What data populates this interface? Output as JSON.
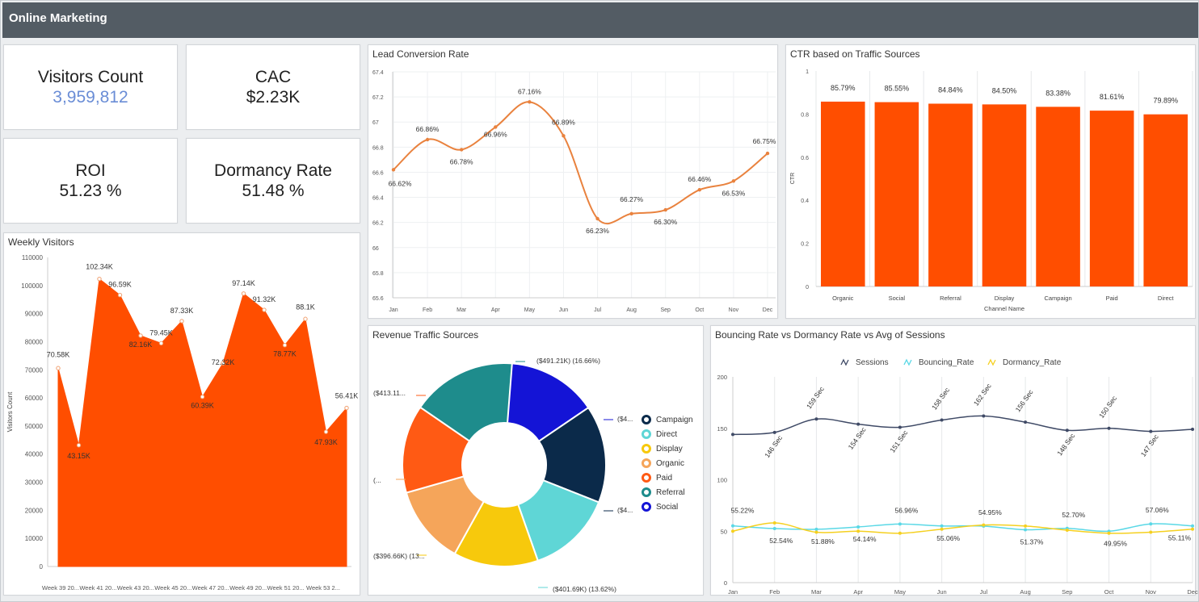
{
  "header": {
    "title": "Online Marketing"
  },
  "kpis": {
    "visitors": {
      "label": "Visitors Count",
      "value": "3,959,812"
    },
    "cac": {
      "label": "CAC",
      "value": "$2.23K"
    },
    "roi": {
      "label": "ROI",
      "value": "51.23 %"
    },
    "dormancy": {
      "label": "Dormancy Rate",
      "value": "51.48 %"
    }
  },
  "colors": {
    "orange": "#ff4e00",
    "leadLine": "#e9823e",
    "sessions": "#3f4a66",
    "bouncing": "#5ad8e6",
    "dormancy": "#f5d020",
    "kpiBlue": "#6a8dd6"
  },
  "chart_data": [
    {
      "id": "weekly",
      "type": "area",
      "title": "Weekly Visitors",
      "ylabel": "Visitors Count",
      "xlabel": "",
      "ylim": [
        0,
        110000
      ],
      "yticks": [
        0,
        10000,
        20000,
        30000,
        40000,
        50000,
        60000,
        70000,
        80000,
        90000,
        100000,
        110000
      ],
      "xtick_labels": [
        "Week 39 20...",
        "Week 41 20...",
        "Week 43 20...",
        "Week 45 20...",
        "Week 47 20...",
        "Week 49 20...",
        "Week 51 20...",
        "Week 53 2..."
      ],
      "series": [
        {
          "values": [
            70580,
            43150,
            102340,
            96590,
            82160,
            79450,
            87330,
            60390,
            72320,
            97140,
            91320,
            78770,
            88100,
            47930,
            56410
          ]
        }
      ],
      "data_labels": [
        "70.58K",
        "43.15K",
        "102.34K",
        "96.59K",
        "82.16K",
        "79.45K",
        "87.33K",
        "60.39K",
        "72.32K",
        "97.14K",
        "91.32K",
        "78.77K",
        "88.1K",
        "47.93K",
        "56.41K"
      ]
    },
    {
      "id": "lead",
      "type": "line",
      "title": "Lead Conversion Rate",
      "xlabel": "",
      "ylabel": "",
      "ylim": [
        65.6,
        67.4
      ],
      "yticks": [
        65.6,
        65.8,
        66,
        66.2,
        66.4,
        66.6,
        66.8,
        67,
        67.2,
        67.4
      ],
      "categories": [
        "Jan",
        "Feb",
        "Mar",
        "Apr",
        "May",
        "Jun",
        "Jul",
        "Aug",
        "Sep",
        "Oct",
        "Nov",
        "Dec"
      ],
      "series": [
        {
          "values": [
            66.62,
            66.86,
            66.78,
            66.96,
            67.16,
            66.89,
            66.23,
            66.27,
            66.3,
            66.46,
            66.53,
            66.75
          ]
        }
      ],
      "data_labels": [
        "66.62%",
        "66.86%",
        "66.78%",
        "66.96%",
        "67.16%",
        "66.89%",
        "66.23%",
        "66.27%",
        "66.30%",
        "66.46%",
        "66.53%",
        "66.75%"
      ]
    },
    {
      "id": "ctr",
      "type": "bar",
      "title": "CTR based on Traffic Sources",
      "xlabel": "Channel Name",
      "ylabel": "CTR",
      "ylim": [
        0,
        1
      ],
      "yticks": [
        0,
        0.2,
        0.4,
        0.6,
        0.8,
        1
      ],
      "categories": [
        "Organic",
        "Social",
        "Referral",
        "Display",
        "Campaign",
        "Paid",
        "Direct"
      ],
      "series": [
        {
          "values": [
            0.8579,
            0.8555,
            0.8484,
            0.845,
            0.8338,
            0.8161,
            0.7989
          ]
        }
      ],
      "data_labels": [
        "85.79%",
        "85.55%",
        "84.84%",
        "84.50%",
        "83.38%",
        "81.61%",
        "79.89%"
      ]
    },
    {
      "id": "revenue",
      "type": "pie",
      "title": "Revenue Traffic Sources",
      "legend": [
        "Campaign",
        "Direct",
        "Display",
        "Organic",
        "Paid",
        "Referral",
        "Social"
      ],
      "slices": [
        {
          "name": "Social",
          "value": 0.155,
          "color": "#1414d6",
          "label": "($4..."
        },
        {
          "name": "Campaign",
          "value": 0.155,
          "color": "#0b2a4a",
          "label": "($4..."
        },
        {
          "name": "Direct",
          "value": 0.1362,
          "color": "#5fd6d6",
          "label": "($401.69K) (13.62%)"
        },
        {
          "name": "Display",
          "value": 0.1345,
          "color": "#f7c90c",
          "label": "($396.66K) (13..."
        },
        {
          "name": "Organic",
          "value": 0.125,
          "color": "#f5a55a",
          "label": "(..."
        },
        {
          "name": "Paid",
          "value": 0.1401,
          "color": "#ff5a14",
          "label": "($413.11..."
        },
        {
          "name": "Referral",
          "value": 0.1666,
          "color": "#1e8c8c",
          "label": "($491.21K) (16.66%)"
        }
      ],
      "legend_colors": [
        "#0b2a4a",
        "#5fd6d6",
        "#f7c90c",
        "#f5a55a",
        "#ff5a14",
        "#1e8c8c",
        "#1414d6"
      ]
    },
    {
      "id": "bouncing",
      "type": "line",
      "title": "Bouncing Rate vs Dormancy Rate vs Avg of Sessions",
      "xlabel": "",
      "ylabel": "",
      "ylim": [
        0,
        200
      ],
      "yticks": [
        0,
        50,
        100,
        150,
        200
      ],
      "categories": [
        "Jan",
        "Feb",
        "Mar",
        "Apr",
        "May",
        "Jun",
        "Jul",
        "Aug",
        "Sep",
        "Oct",
        "Nov",
        "Dec"
      ],
      "series": [
        {
          "name": "Sessions",
          "values": [
            144,
            146,
            159,
            154,
            151,
            158,
            162,
            156,
            148,
            150,
            147,
            149
          ]
        },
        {
          "name": "Bouncing_Rate",
          "values": [
            55.22,
            52.54,
            51.88,
            54.14,
            56.96,
            55.06,
            54.95,
            51.37,
            52.7,
            49.95,
            57.06,
            55.11
          ]
        },
        {
          "name": "Dormancy_Rate",
          "values": [
            50,
            58,
            49,
            50,
            48,
            52,
            56,
            55,
            51,
            48,
            49,
            52
          ]
        }
      ],
      "session_labels": [
        "",
        "146 Sec",
        "159 Sec",
        "154 Sec",
        "151 Sec",
        "158 Sec",
        "162 Sec",
        "156 Sec",
        "148 Sec",
        "150 Sec",
        "147 Sec",
        ""
      ],
      "bounce_labels": [
        "55.22%",
        "52.54%",
        "51.88%",
        "54.14%",
        "56.96%",
        "55.06%",
        "54.95%",
        "51.37%",
        "52.70%",
        "49.95%",
        "57.06%",
        "55.11%"
      ]
    }
  ]
}
